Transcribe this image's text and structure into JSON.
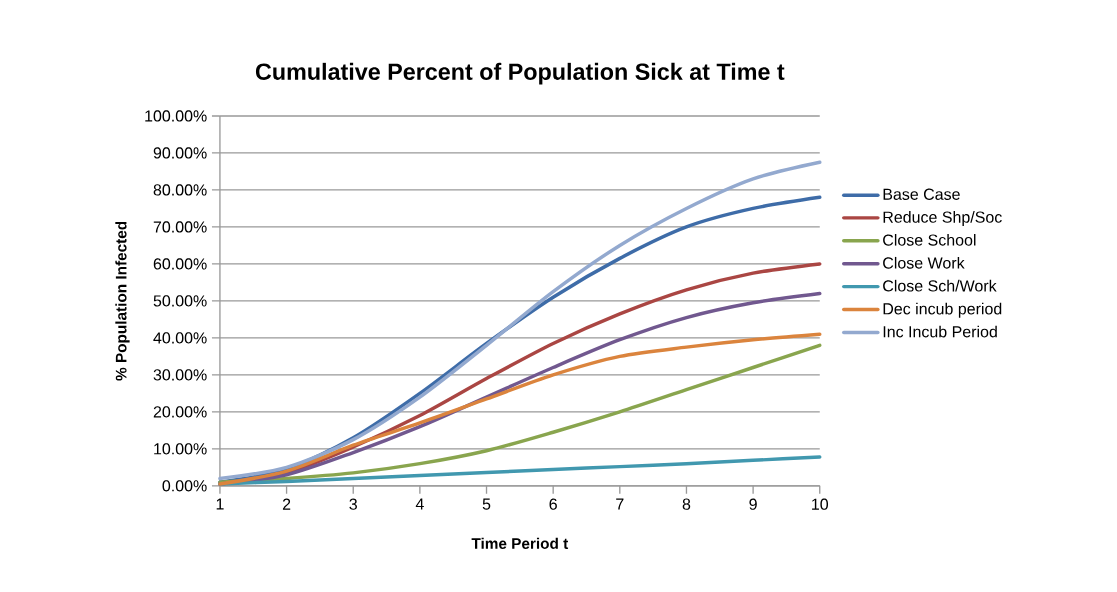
{
  "chart_data": {
    "type": "line",
    "title": "Cumulative Percent of Population Sick at Time t",
    "xlabel": "Time Period t",
    "ylabel": "% Population Infected",
    "x": [
      1,
      2,
      3,
      4,
      5,
      6,
      7,
      8,
      9,
      10
    ],
    "xlim": [
      1,
      10
    ],
    "xticks": [
      1,
      2,
      3,
      4,
      5,
      6,
      7,
      8,
      9,
      10
    ],
    "ylim": [
      0,
      100
    ],
    "yticks": [
      {
        "value": 0,
        "label": "0.00%"
      },
      {
        "value": 10,
        "label": "10.00%"
      },
      {
        "value": 20,
        "label": "20.00%"
      },
      {
        "value": 30,
        "label": "30.00%"
      },
      {
        "value": 40,
        "label": "40.00%"
      },
      {
        "value": 50,
        "label": "50.00%"
      },
      {
        "value": 60,
        "label": "60.00%"
      },
      {
        "value": 70,
        "label": "70.00%"
      },
      {
        "value": 80,
        "label": "80.00%"
      },
      {
        "value": 90,
        "label": "90.00%"
      },
      {
        "value": 100,
        "label": "100.00%"
      }
    ],
    "grid": "y",
    "legend": "right",
    "marker": "none",
    "line_style": "solid",
    "series": [
      {
        "name": "Base Case",
        "color": "#3e6ca8",
        "values": [
          1,
          4.5,
          13,
          25,
          38.5,
          51,
          61.5,
          70,
          75,
          78
        ]
      },
      {
        "name": "Reduce Shp/Soc",
        "color": "#aa4643",
        "values": [
          0.5,
          3.5,
          10.5,
          19,
          29,
          38.5,
          46.5,
          53,
          57.5,
          60
        ]
      },
      {
        "name": "Close School",
        "color": "#89a54e",
        "values": [
          1,
          2,
          3.5,
          6,
          9.5,
          14.5,
          20,
          26,
          32,
          38
        ]
      },
      {
        "name": "Close Work",
        "color": "#71588f",
        "values": [
          0.5,
          3,
          9,
          16,
          24,
          32,
          39.5,
          45.5,
          49.5,
          52
        ]
      },
      {
        "name": "Close Sch/Work",
        "color": "#4198af",
        "values": [
          0.5,
          1.2,
          2,
          2.8,
          3.6,
          4.4,
          5.2,
          6,
          6.9,
          7.8
        ]
      },
      {
        "name": "Dec incub period",
        "color": "#db843d",
        "values": [
          0.5,
          4,
          11,
          17,
          23.5,
          30,
          35,
          37.5,
          39.5,
          41
        ]
      },
      {
        "name": "Inc Incub Period",
        "color": "#93a9cf",
        "values": [
          2,
          5,
          12.5,
          24,
          38,
          52.5,
          65,
          75,
          83,
          87.5
        ]
      }
    ]
  }
}
